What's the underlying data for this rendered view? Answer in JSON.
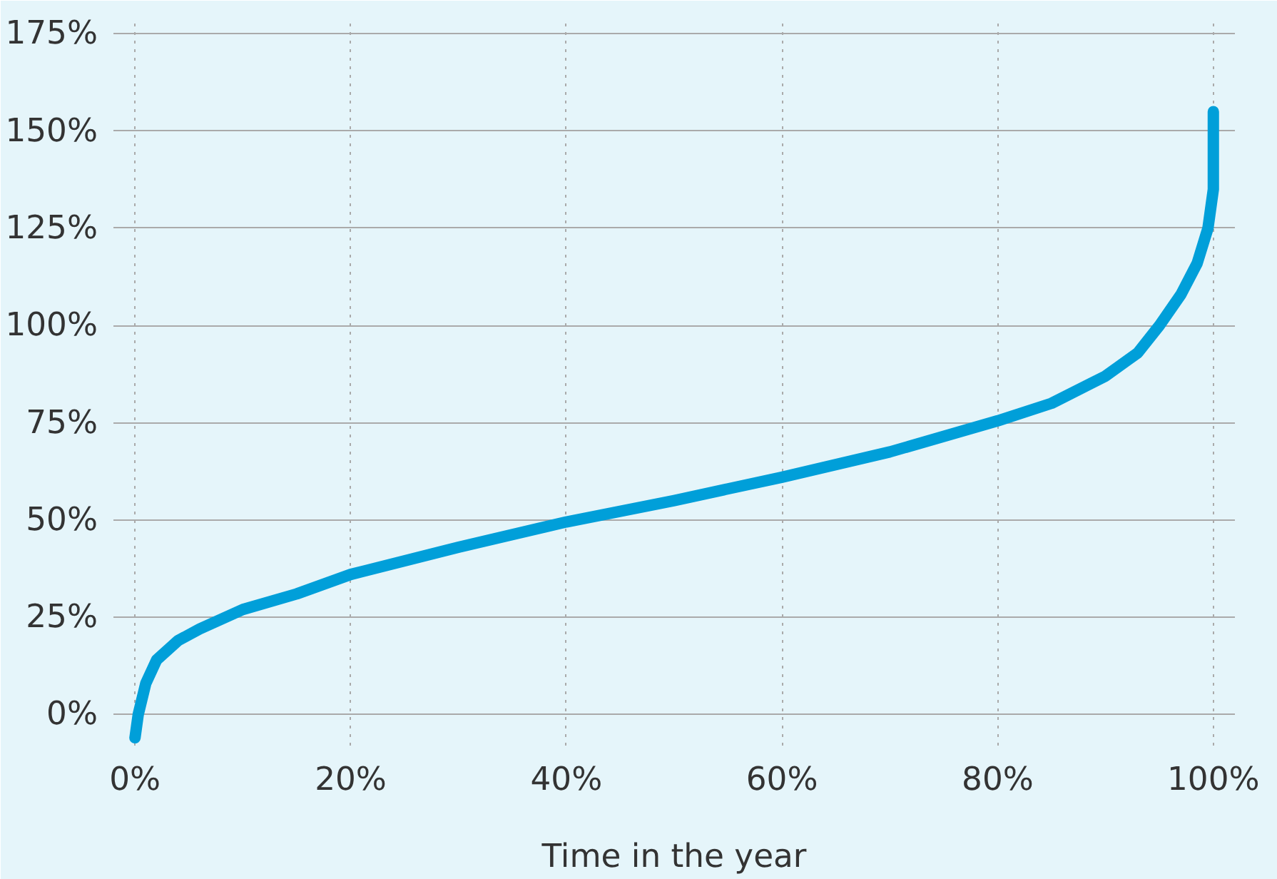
{
  "chart_data": {
    "type": "line",
    "xlabel": "Time in the year",
    "x": [
      0,
      0.3,
      1,
      2,
      4,
      6,
      10,
      15,
      20,
      30,
      40,
      50,
      60,
      70,
      80,
      85,
      90,
      93,
      95,
      97,
      98.5,
      99.5,
      100,
      100
    ],
    "series": [
      {
        "color": "#009fd9",
        "values": [
          -6,
          0,
          8,
          14,
          19,
          22,
          27,
          31,
          36,
          43,
          49.5,
          55,
          61,
          67.5,
          75.5,
          80,
          87,
          93,
          100,
          108,
          116,
          125,
          135,
          155
        ]
      }
    ],
    "xlim": [
      -2,
      102
    ],
    "ylim": [
      -8,
      178
    ],
    "xticks": [
      {
        "value": 0,
        "label": "0%"
      },
      {
        "value": 20,
        "label": "20%"
      },
      {
        "value": 40,
        "label": "40%"
      },
      {
        "value": 60,
        "label": "60%"
      },
      {
        "value": 80,
        "label": "80%"
      },
      {
        "value": 100,
        "label": "100%"
      }
    ],
    "yticks": [
      {
        "value": 0,
        "label": "0%"
      },
      {
        "value": 25,
        "label": "25%"
      },
      {
        "value": 50,
        "label": "50%"
      },
      {
        "value": 75,
        "label": "75%"
      },
      {
        "value": 100,
        "label": "100%"
      },
      {
        "value": 125,
        "label": "125%"
      },
      {
        "value": 150,
        "label": "150%"
      },
      {
        "value": 175,
        "label": "175%"
      }
    ],
    "grid": true,
    "marker": "none",
    "line_style": "solid"
  }
}
